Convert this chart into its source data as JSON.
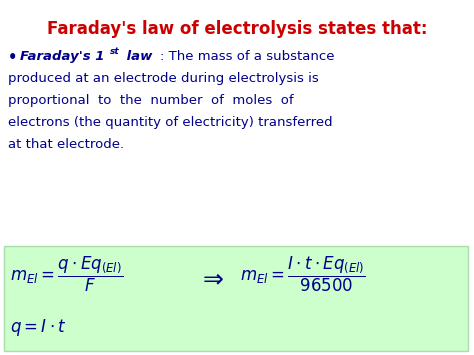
{
  "title": "Faraday's law of electrolysis states that:",
  "title_color": "#CC0000",
  "title_fontsize": 12,
  "body_text_color": "#00008B",
  "body_fontsize": 9.5,
  "bg_color": "#ffffff",
  "box_color": "#ccffcc",
  "box_edge_color": "#aaddaa",
  "formula_color": "#00008B",
  "formula_fontsize": 12,
  "lines": [
    "produced at an electrode during electrolysis is",
    "proportional  to  the  number  of  moles  of",
    "electrons (the quantity of electricity) transferred",
    "at that electrode."
  ]
}
